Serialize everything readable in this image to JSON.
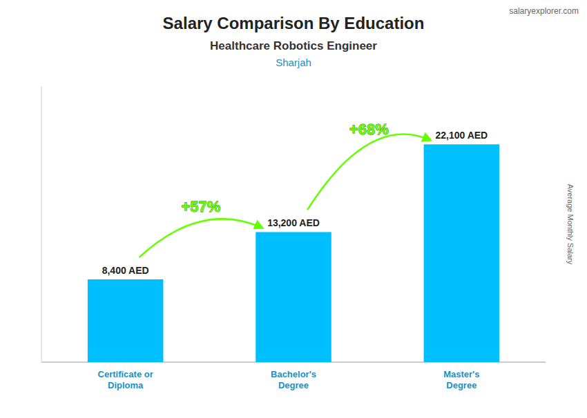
{
  "chart_data": {
    "type": "bar",
    "title": "Salary Comparison By Education",
    "subtitle": [
      "Healthcare Robotics Engineer",
      "Sharjah"
    ],
    "ylabel": "Average Monthly Salary",
    "categories": [
      "Certificate or\nDiploma",
      "Bachelor's\nDegree",
      "Master's\nDegree"
    ],
    "values": [
      8400,
      13200,
      22100
    ],
    "value_labels": [
      "8,400 AED",
      "13,200 AED",
      "22,100 AED"
    ],
    "data_labels": true,
    "color": "#00BFFF",
    "ylim": [
      0,
      28000
    ],
    "tick_labels": "x",
    "grid": false,
    "annotations": [
      {
        "text": "+57%",
        "color": "#66FF00"
      },
      {
        "text": "+68%",
        "color": "#66FF00"
      },
      {
        "text": "salaryexplorer.com"
      }
    ]
  }
}
